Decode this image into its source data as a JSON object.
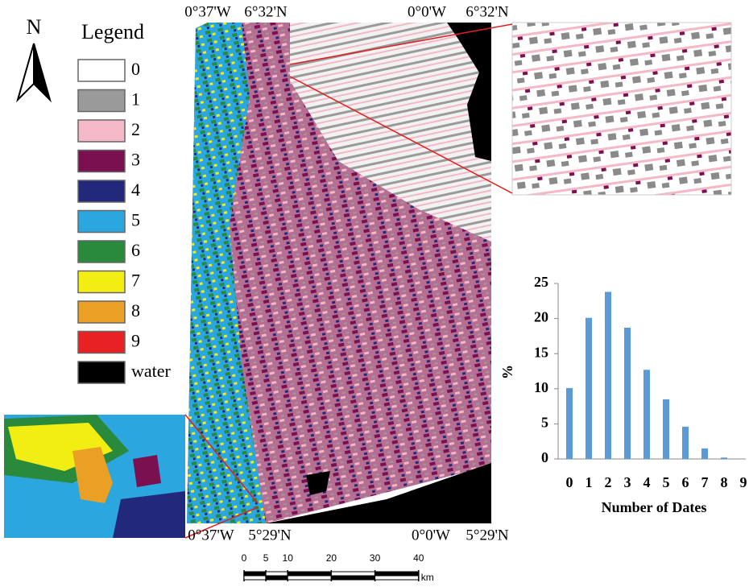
{
  "north_arrow": {
    "label": "N"
  },
  "legend": {
    "title": "Legend",
    "items": [
      {
        "label": "0",
        "color": "#ffffff"
      },
      {
        "label": "1",
        "color": "#9a9a9a"
      },
      {
        "label": "2",
        "color": "#f4b8c6"
      },
      {
        "label": "3",
        "color": "#7a1050"
      },
      {
        "label": "4",
        "color": "#22297a"
      },
      {
        "label": "5",
        "color": "#2ba6df"
      },
      {
        "label": "6",
        "color": "#2a8a3c"
      },
      {
        "label": "7",
        "color": "#f2ee14"
      },
      {
        "label": "8",
        "color": "#e9a024"
      },
      {
        "label": "9",
        "color": "#e82222"
      },
      {
        "label": "water",
        "color": "#000000"
      }
    ]
  },
  "map": {
    "top_left": [
      "0°37'W",
      "6°32'N"
    ],
    "top_right": [
      "0°0'W",
      "6°32'N"
    ],
    "bottom_left": [
      "0°37'W",
      "5°29'N"
    ],
    "bottom_right": [
      "0°0'W",
      "5°29'N"
    ]
  },
  "scale_bar": {
    "ticks": [
      0,
      5,
      10,
      20,
      30,
      40
    ],
    "unit": "km"
  },
  "chart_data": {
    "type": "bar",
    "y_label": "%",
    "x_label": "Number of Dates",
    "categories": [
      "0",
      "1",
      "2",
      "3",
      "4",
      "5",
      "6",
      "7",
      "8",
      "9"
    ],
    "values": [
      10.1,
      20.1,
      23.8,
      18.7,
      12.7,
      8.5,
      4.6,
      1.5,
      0.2,
      0
    ],
    "color": "#5b9bd5",
    "ylim": [
      0,
      25
    ],
    "yticks": [
      0,
      5,
      10,
      15,
      20,
      25
    ]
  }
}
